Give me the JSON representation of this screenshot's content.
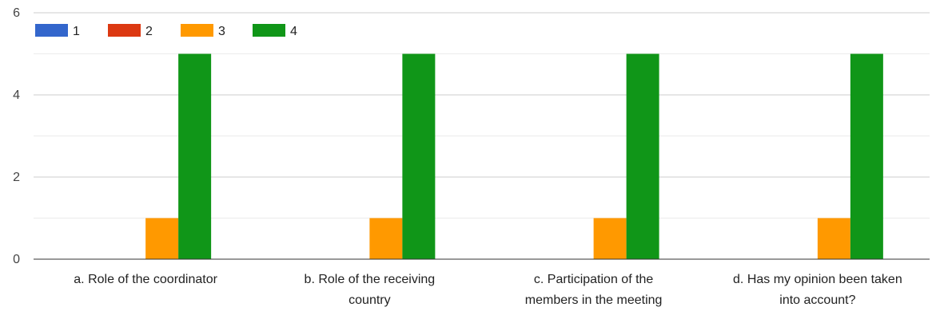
{
  "chart_data": {
    "type": "bar",
    "title": "",
    "xlabel": "",
    "ylabel": "",
    "categories": [
      [
        "a. Role of the coordinator"
      ],
      [
        "b. Role of the receiving",
        "country"
      ],
      [
        "c. Participation of the",
        "members in the meeting"
      ],
      [
        "d. Has my opinion been taken",
        "into account?"
      ]
    ],
    "series": [
      {
        "name": "1",
        "color": "#3366cc",
        "values": [
          0,
          0,
          0,
          0
        ]
      },
      {
        "name": "2",
        "color": "#dc3912",
        "values": [
          0,
          0,
          0,
          0
        ]
      },
      {
        "name": "3",
        "color": "#ff9900",
        "values": [
          1,
          1,
          1,
          1
        ]
      },
      {
        "name": "4",
        "color": "#109618",
        "values": [
          5,
          5,
          5,
          5
        ]
      }
    ],
    "ylim": [
      0,
      6
    ],
    "yticks": [
      0,
      2,
      4,
      6
    ],
    "minor_gridlines": [
      1,
      3,
      5
    ],
    "grid": true,
    "legend_position": "top-left"
  }
}
